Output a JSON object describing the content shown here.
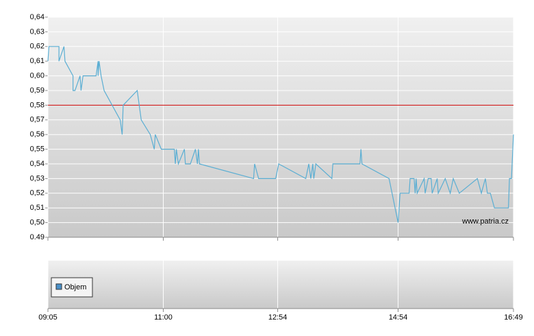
{
  "chart_data": {
    "type": "line",
    "x": [
      "09:05",
      "09:06",
      "09:16",
      "09:16",
      "09:21",
      "09:22",
      "09:30",
      "09:30",
      "09:32",
      "09:37",
      "09:38",
      "09:40",
      "09:53",
      "09:55",
      "09:55",
      "09:56",
      "09:58",
      "10:01",
      "10:17",
      "10:19",
      "10:20",
      "10:34",
      "10:36",
      "10:38",
      "10:47",
      "10:51",
      "10:52",
      "10:58",
      "11:11",
      "11:12",
      "11:13",
      "11:15",
      "11:21",
      "11:22",
      "11:27",
      "11:32",
      "11:34",
      "11:35",
      "11:36",
      "12:30",
      "12:31",
      "12:35",
      "12:52",
      "12:55",
      "13:22",
      "13:25",
      "13:27",
      "13:29",
      "13:30",
      "13:32",
      "13:48",
      "13:49",
      "14:16",
      "14:17",
      "14:18",
      "14:45",
      "14:51",
      "14:54",
      "14:56",
      "15:05",
      "15:06",
      "15:10",
      "15:11",
      "15:12",
      "15:13",
      "15:20",
      "15:21",
      "15:24",
      "15:27",
      "15:28",
      "15:33",
      "15:34",
      "15:41",
      "15:46",
      "15:49",
      "15:55",
      "16:13",
      "16:17",
      "16:21",
      "16:23",
      "16:26",
      "16:30",
      "16:44",
      "16:45",
      "16:47",
      "16:49"
    ],
    "series": [
      {
        "color": "#5aaed3",
        "values": [
          0.61,
          0.62,
          0.62,
          0.61,
          0.62,
          0.61,
          0.6,
          0.59,
          0.59,
          0.6,
          0.59,
          0.6,
          0.6,
          0.61,
          0.6,
          0.61,
          0.6,
          0.59,
          0.57,
          0.56,
          0.58,
          0.59,
          0.58,
          0.57,
          0.56,
          0.55,
          0.56,
          0.55,
          0.55,
          0.54,
          0.55,
          0.54,
          0.55,
          0.54,
          0.54,
          0.55,
          0.54,
          0.55,
          0.54,
          0.53,
          0.54,
          0.53,
          0.53,
          0.54,
          0.53,
          0.54,
          0.53,
          0.54,
          0.53,
          0.54,
          0.53,
          0.54,
          0.54,
          0.55,
          0.54,
          0.53,
          0.51,
          0.5,
          0.52,
          0.52,
          0.53,
          0.53,
          0.52,
          0.53,
          0.52,
          0.53,
          0.52,
          0.53,
          0.53,
          0.52,
          0.53,
          0.52,
          0.53,
          0.52,
          0.53,
          0.52,
          0.53,
          0.52,
          0.53,
          0.52,
          0.52,
          0.51,
          0.51,
          0.53,
          0.53,
          0.56
        ]
      }
    ],
    "xlim": [
      "09:05",
      "16:49"
    ],
    "xticks": [
      "09:05",
      "11:00",
      "12:54",
      "14:54",
      "16:49"
    ],
    "ylim": [
      0.49,
      0.64
    ],
    "yticks": [
      {
        "value": 0.49,
        "label": "0.49"
      },
      {
        "value": 0.5,
        "label": "0,50"
      },
      {
        "value": 0.51,
        "label": "0,51"
      },
      {
        "value": 0.52,
        "label": "0,52"
      },
      {
        "value": 0.53,
        "label": "0,53"
      },
      {
        "value": 0.54,
        "label": "0,54"
      },
      {
        "value": 0.55,
        "label": "0,55"
      },
      {
        "value": 0.56,
        "label": "0,56"
      },
      {
        "value": 0.57,
        "label": "0,57"
      },
      {
        "value": 0.58,
        "label": "0,58"
      },
      {
        "value": 0.59,
        "label": "0,59"
      },
      {
        "value": 0.6,
        "label": "0,60"
      },
      {
        "value": 0.61,
        "label": "0,61"
      },
      {
        "value": 0.62,
        "label": "0,62"
      },
      {
        "value": 0.63,
        "label": "0,63"
      },
      {
        "value": 0.64,
        "label": "0,64"
      }
    ],
    "grid": true,
    "reference_line": {
      "value": 0.58,
      "color": "#cc0000"
    },
    "watermark": "www.patria.cz",
    "volume_legend": {
      "name": "Objem",
      "color": "#4a90c8"
    }
  }
}
